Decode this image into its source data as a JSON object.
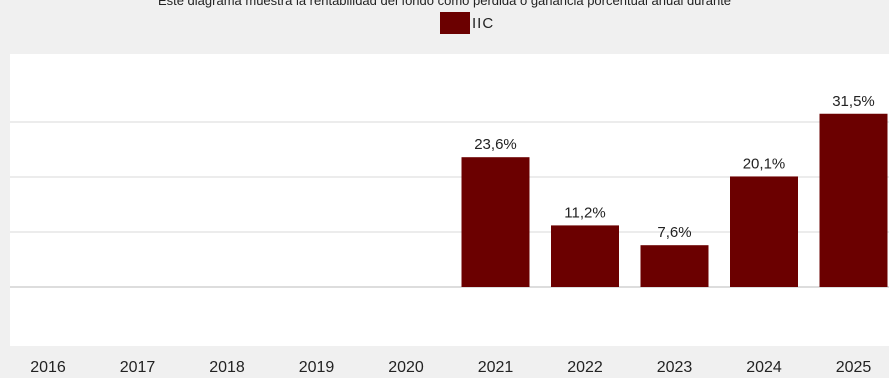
{
  "chart_data": {
    "type": "bar",
    "title": "Este diagrama muestra la rentabilidad del fondo como pérdida o ganancia porcentual anual durante",
    "categories": [
      "2016",
      "2017",
      "2018",
      "2019",
      "2020",
      "2021",
      "2022",
      "2023",
      "2024",
      "2025"
    ],
    "series": [
      {
        "name": "IIC",
        "values": [
          null,
          null,
          null,
          null,
          null,
          23.6,
          11.2,
          7.6,
          20.1,
          31.5
        ],
        "labels": [
          "",
          "",
          "",
          "",
          "",
          "23,6%",
          "11,2%",
          "7,6%",
          "20,1%",
          "31,5%"
        ]
      }
    ],
    "ylim": [
      -10,
      35
    ],
    "grid": true,
    "legend": "top-center",
    "colors": {
      "bar": "#6b0000",
      "grid": "#d8d8d8",
      "zero": "#bbbbbb"
    }
  }
}
